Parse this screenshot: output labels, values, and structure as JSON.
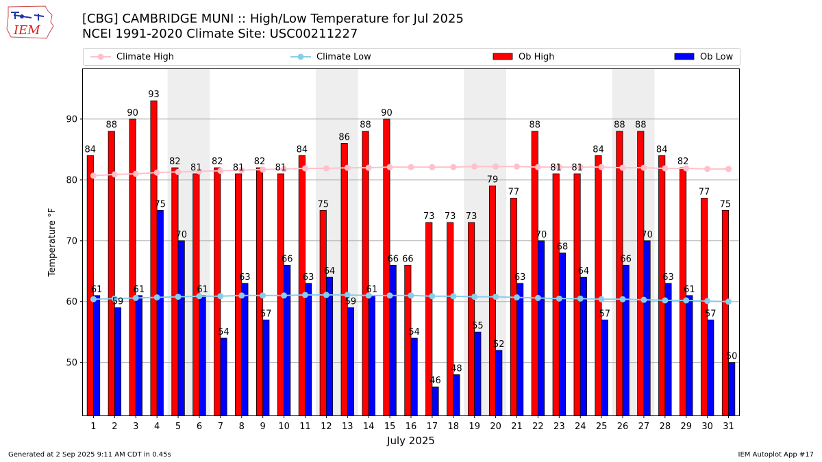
{
  "header": {
    "logo_text": "IEM",
    "title_line1": "[CBG] CAMBRIDGE MUNI :: High/Low Temperature for Jul 2025",
    "title_line2": "NCEI 1991-2020 Climate Site: USC00211227"
  },
  "footer": {
    "generated": "Generated at 2 Sep 2025 9:11 AM CDT in 0.45s",
    "app": "IEM Autoplot App #17"
  },
  "chart_data": {
    "type": "bar",
    "title": "[CBG] CAMBRIDGE MUNI :: High/Low Temperature for Jul 2025",
    "subtitle": "NCEI 1991-2020 Climate Site: USC00211227",
    "xlabel": "July 2025",
    "ylabel": "Temperature °F",
    "ylim": [
      41.3,
      98.2
    ],
    "yticks": [
      50,
      60,
      70,
      80,
      90
    ],
    "grid": "horizontal",
    "legend_position": "top",
    "categories": [
      "1",
      "2",
      "3",
      "4",
      "5",
      "6",
      "7",
      "8",
      "9",
      "10",
      "11",
      "12",
      "13",
      "14",
      "15",
      "16",
      "17",
      "18",
      "19",
      "20",
      "21",
      "22",
      "23",
      "24",
      "25",
      "26",
      "27",
      "28",
      "29",
      "30",
      "31"
    ],
    "weekend_shading": [
      [
        5,
        6
      ],
      [
        12,
        13
      ],
      [
        19,
        20
      ],
      [
        26,
        27
      ]
    ],
    "colors": {
      "ob_high": "#ff0000",
      "ob_low": "#0000ff",
      "climate_high": "#ffc0cb",
      "climate_low": "#87ceeb",
      "weekend": "#eeeeee",
      "grid": "#b0b0b0"
    },
    "series": [
      {
        "name": "Ob High",
        "kind": "bar",
        "values": [
          84,
          88,
          90,
          93,
          82,
          81,
          82,
          81,
          82,
          81,
          84,
          75,
          86,
          88,
          90,
          66,
          73,
          73,
          73,
          79,
          77,
          88,
          81,
          81,
          84,
          88,
          88,
          84,
          82,
          77,
          75
        ],
        "labels": [
          "84",
          "88",
          "90",
          "93",
          "82",
          "81",
          "82",
          "81",
          "82",
          "81",
          "84",
          "75",
          "86",
          "88",
          "90",
          "66",
          "73",
          "73",
          "73",
          "79",
          "77",
          "88",
          "81",
          "81",
          "84",
          "88",
          "88",
          "84",
          "82",
          "77",
          "75"
        ]
      },
      {
        "name": "Ob Low",
        "kind": "bar",
        "values": [
          61,
          59,
          61,
          75,
          70,
          61,
          54,
          63,
          57,
          66,
          63,
          64,
          59,
          61,
          66,
          54,
          46,
          48,
          55,
          52,
          63,
          70,
          68,
          64,
          57,
          66,
          70,
          63,
          61,
          57,
          50
        ],
        "labels": [
          "61",
          "59",
          "61",
          "75",
          "70",
          "61",
          "54",
          "63",
          "57",
          "66",
          "63",
          "64",
          "59",
          "61",
          "66",
          "54",
          "46",
          "48",
          "55",
          "52",
          "63",
          "70",
          "68",
          "64",
          "57",
          "66",
          "70",
          "63",
          "61",
          "57",
          "50"
        ]
      },
      {
        "name": "Climate High",
        "kind": "line",
        "values": [
          80.7,
          80.9,
          81.0,
          81.2,
          81.3,
          81.4,
          81.5,
          81.6,
          81.7,
          81.8,
          81.9,
          81.9,
          82.0,
          82.0,
          82.1,
          82.1,
          82.1,
          82.1,
          82.2,
          82.2,
          82.2,
          82.1,
          82.1,
          82.1,
          82.1,
          82.0,
          82.0,
          81.9,
          81.9,
          81.8,
          81.8
        ]
      },
      {
        "name": "Climate Low",
        "kind": "line",
        "values": [
          60.4,
          60.5,
          60.6,
          60.7,
          60.8,
          60.9,
          60.9,
          61.0,
          61.0,
          61.0,
          61.1,
          61.1,
          61.1,
          61.0,
          61.0,
          61.0,
          60.9,
          60.9,
          60.8,
          60.8,
          60.7,
          60.6,
          60.5,
          60.5,
          60.4,
          60.4,
          60.3,
          60.2,
          60.2,
          60.1,
          60.0
        ]
      }
    ]
  }
}
